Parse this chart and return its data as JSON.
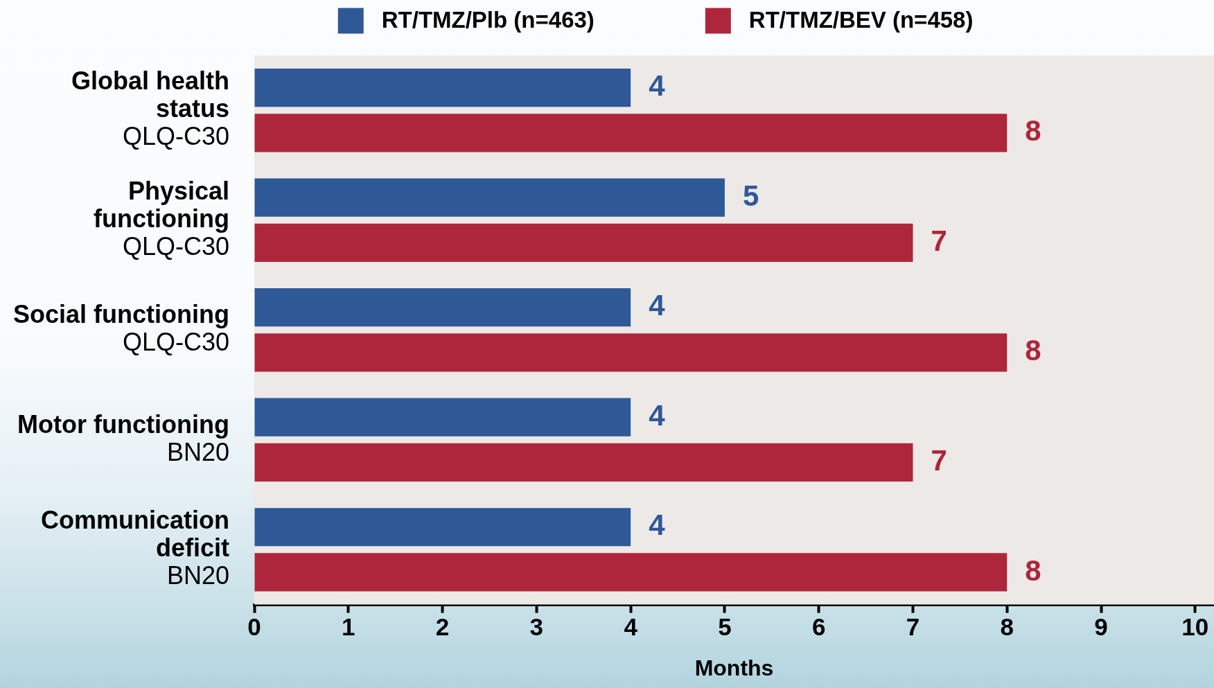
{
  "chart_data": {
    "type": "bar",
    "orientation": "horizontal",
    "categories": [
      "Global health\nstatus\nQLQ-C30",
      "Physical\nfunctioning\nQLQ-C30",
      "Social functioning\nQLQ-C30",
      "Motor functioning\nBN20",
      "Communication\ndeficit\nBN20"
    ],
    "series": [
      {
        "name": "RT/TMZ/Plb (n=463)",
        "color": "#2f5897",
        "values": [
          4,
          5,
          4,
          4,
          4
        ]
      },
      {
        "name": "RT/TMZ/BEV (n=458)",
        "color": "#ae263b",
        "values": [
          8,
          7,
          8,
          7,
          8
        ]
      }
    ],
    "xlabel": "Months",
    "xlim": [
      0,
      10.2
    ],
    "xticks": [
      0,
      1,
      2,
      3,
      4,
      5,
      6,
      7,
      8,
      9,
      10
    ],
    "legend": "top",
    "data_labels": true
  }
}
